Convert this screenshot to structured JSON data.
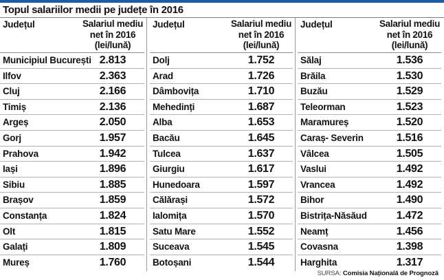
{
  "title": "Topul salariilor medii pe județe în 2016",
  "header": {
    "county": "Județul",
    "salary_line1": "Salariul mediu",
    "salary_line2": "net în 2016",
    "salary_line3": "(lei/lună)"
  },
  "columns": [
    [
      {
        "name": "Municipiul București",
        "value": "2.813"
      },
      {
        "name": "Ilfov",
        "value": "2.363"
      },
      {
        "name": "Cluj",
        "value": "2.166"
      },
      {
        "name": "Timiș",
        "value": "2.136"
      },
      {
        "name": "Argeș",
        "value": "2.050"
      },
      {
        "name": "Gorj",
        "value": "1.957"
      },
      {
        "name": "Prahova",
        "value": "1.942"
      },
      {
        "name": "Iași",
        "value": "1.896"
      },
      {
        "name": "Sibiu",
        "value": "1.885"
      },
      {
        "name": "Brașov",
        "value": "1.859"
      },
      {
        "name": "Constanța",
        "value": "1.824"
      },
      {
        "name": "Olt",
        "value": "1.815"
      },
      {
        "name": "Galați",
        "value": "1.809"
      },
      {
        "name": "Mureș",
        "value": "1.760"
      }
    ],
    [
      {
        "name": "Dolj",
        "value": "1.752"
      },
      {
        "name": "Arad",
        "value": "1.726"
      },
      {
        "name": "Dâmbovița",
        "value": "1.710"
      },
      {
        "name": "Mehedinți",
        "value": "1.687"
      },
      {
        "name": "Alba",
        "value": "1.653"
      },
      {
        "name": "Bacău",
        "value": "1.645"
      },
      {
        "name": "Tulcea",
        "value": "1.637"
      },
      {
        "name": "Giurgiu",
        "value": "1.617"
      },
      {
        "name": "Hunedoara",
        "value": "1.597"
      },
      {
        "name": "Călărași",
        "value": "1.572"
      },
      {
        "name": "Ialomița",
        "value": "1.570"
      },
      {
        "name": "Satu Mare",
        "value": "1.552"
      },
      {
        "name": "Suceava",
        "value": "1.545"
      },
      {
        "name": "Botoșani",
        "value": "1.544"
      }
    ],
    [
      {
        "name": "Sălaj",
        "value": "1.536"
      },
      {
        "name": "Brăila",
        "value": "1.530"
      },
      {
        "name": "Buzău",
        "value": "1.529"
      },
      {
        "name": "Teleorman",
        "value": "1.523"
      },
      {
        "name": "Maramureș",
        "value": "1.520"
      },
      {
        "name": "Caraș- Severin",
        "value": "1.516"
      },
      {
        "name": "Vâlcea",
        "value": "1.505"
      },
      {
        "name": "Vaslui",
        "value": "1.492"
      },
      {
        "name": "Vrancea",
        "value": "1.492"
      },
      {
        "name": "Bihor",
        "value": "1.490"
      },
      {
        "name": "Bistrița-Năsăud",
        "value": "1.472"
      },
      {
        "name": "Neamț",
        "value": "1.456"
      },
      {
        "name": "Covasna",
        "value": "1.398"
      },
      {
        "name": "Harghita",
        "value": "1.317"
      }
    ]
  ],
  "source": {
    "label": "SURSA:",
    "name": "Comisia Națională de Prognoză"
  },
  "colors": {
    "accent": "#1d5fa6",
    "row_line": "#aeb0b2",
    "text": "#111111"
  }
}
